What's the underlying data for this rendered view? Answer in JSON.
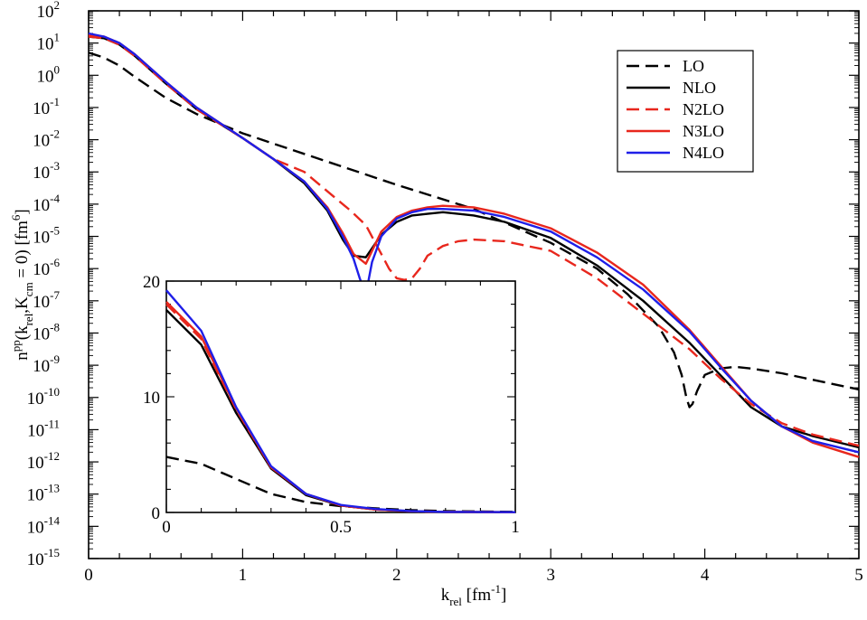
{
  "chart_data": [
    {
      "name": "main",
      "type": "line",
      "title": "",
      "xlabel": {
        "base": "k",
        "sub": "rel",
        "unit_pre": " [fm",
        "unit_sup": "-1",
        "unit_post": "]"
      },
      "ylabel": {
        "base": "n",
        "base_sup": "pp",
        "open": "(k",
        "sub1": "rel",
        "mid": ",K",
        "sub2": "cm",
        "close": " = 0) [fm",
        "unit_sup": "6",
        "end": "]"
      },
      "yscale": "log",
      "xlim": [
        0,
        5
      ],
      "ylim_exp": [
        -15,
        2
      ],
      "x_tick_labels": [
        "0",
        "1",
        "2",
        "3",
        "4",
        "5"
      ],
      "y_tick_base": "10",
      "y_tick_exponents": [
        "2",
        "1",
        "0",
        "-1",
        "-2",
        "-3",
        "-4",
        "-5",
        "-6",
        "-7",
        "-8",
        "-9",
        "-10",
        "-11",
        "-12",
        "-13",
        "-14",
        "-15"
      ],
      "legend_position": "top-right",
      "series": [
        {
          "name": "LO",
          "color": "#000000",
          "dash": "dashed",
          "x": [
            0,
            0.1,
            0.2,
            0.3,
            0.5,
            0.7,
            1.0,
            1.5,
            2.0,
            2.5,
            3.0,
            3.3,
            3.5,
            3.7,
            3.8,
            3.85,
            3.88,
            3.9,
            3.92,
            3.95,
            4.0,
            4.1,
            4.2,
            4.3,
            4.5,
            4.7,
            5.0
          ],
          "log10y": [
            0.7,
            0.55,
            0.3,
            -0.05,
            -0.7,
            -1.2,
            -1.8,
            -2.6,
            -3.4,
            -4.15,
            -5.2,
            -6.0,
            -6.8,
            -7.8,
            -8.6,
            -9.3,
            -10.0,
            -10.3,
            -10.2,
            -9.8,
            -9.3,
            -9.1,
            -9.05,
            -9.1,
            -9.25,
            -9.45,
            -9.75
          ]
        },
        {
          "name": "NLO",
          "color": "#000000",
          "dash": "solid",
          "x": [
            0,
            0.1,
            0.2,
            0.3,
            0.5,
            0.7,
            1.0,
            1.2,
            1.4,
            1.55,
            1.65,
            1.72,
            1.8,
            1.9,
            2.0,
            2.1,
            2.2,
            2.3,
            2.5,
            2.7,
            3.0,
            3.3,
            3.6,
            3.9,
            4.1,
            4.3,
            4.5,
            4.7,
            5.0
          ],
          "log10y": [
            1.2,
            1.15,
            0.95,
            0.6,
            -0.25,
            -1.05,
            -1.95,
            -2.6,
            -3.35,
            -4.2,
            -5.1,
            -5.6,
            -5.65,
            -4.95,
            -4.55,
            -4.35,
            -4.3,
            -4.25,
            -4.35,
            -4.55,
            -5.05,
            -5.9,
            -7.0,
            -8.3,
            -9.3,
            -10.3,
            -10.9,
            -11.2,
            -11.55
          ]
        },
        {
          "name": "N2LO",
          "color": "#e8271d",
          "dash": "dashed",
          "x": [
            0,
            0.1,
            0.2,
            0.3,
            0.5,
            0.7,
            1.0,
            1.2,
            1.4,
            1.6,
            1.7,
            1.8,
            1.85,
            1.9,
            1.95,
            2.0,
            2.05,
            2.1,
            2.15,
            2.2,
            2.3,
            2.4,
            2.5,
            2.7,
            3.0,
            3.3,
            3.6,
            3.9,
            4.1,
            4.3,
            4.5,
            4.7,
            5.0
          ],
          "log10y": [
            1.2,
            1.15,
            0.95,
            0.6,
            -0.25,
            -1.05,
            -1.95,
            -2.6,
            -3.0,
            -3.8,
            -4.2,
            -4.65,
            -5.1,
            -5.55,
            -6.0,
            -6.3,
            -6.35,
            -6.3,
            -6.0,
            -5.6,
            -5.3,
            -5.15,
            -5.1,
            -5.15,
            -5.45,
            -6.3,
            -7.4,
            -8.5,
            -9.4,
            -10.2,
            -10.8,
            -11.15,
            -11.5
          ]
        },
        {
          "name": "N3LO",
          "color": "#e8271d",
          "dash": "solid",
          "x": [
            0,
            0.1,
            0.2,
            0.3,
            0.5,
            0.7,
            1.0,
            1.2,
            1.4,
            1.55,
            1.65,
            1.72,
            1.8,
            1.9,
            2.0,
            2.1,
            2.2,
            2.3,
            2.5,
            2.7,
            3.0,
            3.3,
            3.6,
            3.9,
            4.1,
            4.3,
            4.5,
            4.7,
            5.0
          ],
          "log10y": [
            1.25,
            1.2,
            1.0,
            0.65,
            -0.2,
            -1.0,
            -1.95,
            -2.6,
            -3.3,
            -4.1,
            -4.9,
            -5.55,
            -5.85,
            -4.85,
            -4.4,
            -4.2,
            -4.1,
            -4.05,
            -4.1,
            -4.3,
            -4.75,
            -5.5,
            -6.5,
            -7.9,
            -9.0,
            -10.1,
            -10.9,
            -11.4,
            -11.85
          ]
        },
        {
          "name": "N4LO",
          "color": "#1f1fe8",
          "dash": "solid",
          "x": [
            0,
            0.1,
            0.2,
            0.3,
            0.5,
            0.7,
            1.0,
            1.2,
            1.4,
            1.55,
            1.65,
            1.72,
            1.76,
            1.8,
            1.84,
            1.9,
            2.0,
            2.1,
            2.2,
            2.3,
            2.5,
            2.7,
            3.0,
            3.3,
            3.6,
            3.9,
            4.1,
            4.3,
            4.5,
            4.7,
            5.0
          ],
          "log10y": [
            1.3,
            1.2,
            1.0,
            0.65,
            -0.2,
            -1.0,
            -1.95,
            -2.6,
            -3.3,
            -4.15,
            -5.0,
            -5.7,
            -6.3,
            -6.8,
            -5.8,
            -5.0,
            -4.45,
            -4.25,
            -4.15,
            -4.15,
            -4.2,
            -4.4,
            -4.85,
            -5.65,
            -6.65,
            -7.95,
            -9.05,
            -10.1,
            -10.9,
            -11.35,
            -11.7
          ]
        }
      ]
    },
    {
      "name": "inset",
      "type": "line",
      "title": "",
      "xlim": [
        0,
        1
      ],
      "ylim": [
        0,
        20
      ],
      "x_ticks": [
        0,
        0.5,
        1
      ],
      "x_tick_labels": [
        "0",
        "0.5",
        "1"
      ],
      "y_ticks": [
        0,
        10,
        20
      ],
      "y_tick_labels": [
        "0",
        "10",
        "20"
      ],
      "series": [
        {
          "name": "LO",
          "color": "#000000",
          "dash": "dashed",
          "x": [
            0,
            0.1,
            0.2,
            0.3,
            0.4,
            0.5,
            0.6,
            0.7,
            0.8,
            1.0
          ],
          "y": [
            4.8,
            4.2,
            2.9,
            1.6,
            0.9,
            0.55,
            0.35,
            0.2,
            0.12,
            0.05
          ]
        },
        {
          "name": "NLO",
          "color": "#000000",
          "dash": "solid",
          "x": [
            0,
            0.1,
            0.2,
            0.3,
            0.4,
            0.5,
            0.6,
            0.7,
            0.8,
            1.0
          ],
          "y": [
            17.5,
            14.5,
            8.6,
            3.8,
            1.5,
            0.6,
            0.25,
            0.1,
            0.05,
            0.02
          ]
        },
        {
          "name": "N2LO",
          "color": "#e8271d",
          "dash": "dashed",
          "x": [
            0,
            0.1,
            0.2,
            0.3,
            0.4,
            0.5,
            0.6,
            0.7,
            0.8,
            1.0
          ],
          "y": [
            18.0,
            15.0,
            8.9,
            3.9,
            1.6,
            0.6,
            0.25,
            0.1,
            0.05,
            0.02
          ]
        },
        {
          "name": "N3LO",
          "color": "#e8271d",
          "dash": "solid",
          "x": [
            0,
            0.1,
            0.2,
            0.3,
            0.4,
            0.5,
            0.6,
            0.7,
            0.8,
            1.0
          ],
          "y": [
            18.2,
            15.2,
            9.0,
            3.9,
            1.6,
            0.6,
            0.25,
            0.1,
            0.05,
            0.02
          ]
        },
        {
          "name": "N4LO",
          "color": "#1f1fe8",
          "dash": "solid",
          "x": [
            0,
            0.1,
            0.2,
            0.3,
            0.4,
            0.5,
            0.6,
            0.7,
            0.8,
            1.0
          ],
          "y": [
            19.2,
            15.7,
            9.1,
            4.0,
            1.6,
            0.65,
            0.3,
            0.12,
            0.05,
            0.02
          ]
        }
      ]
    }
  ]
}
